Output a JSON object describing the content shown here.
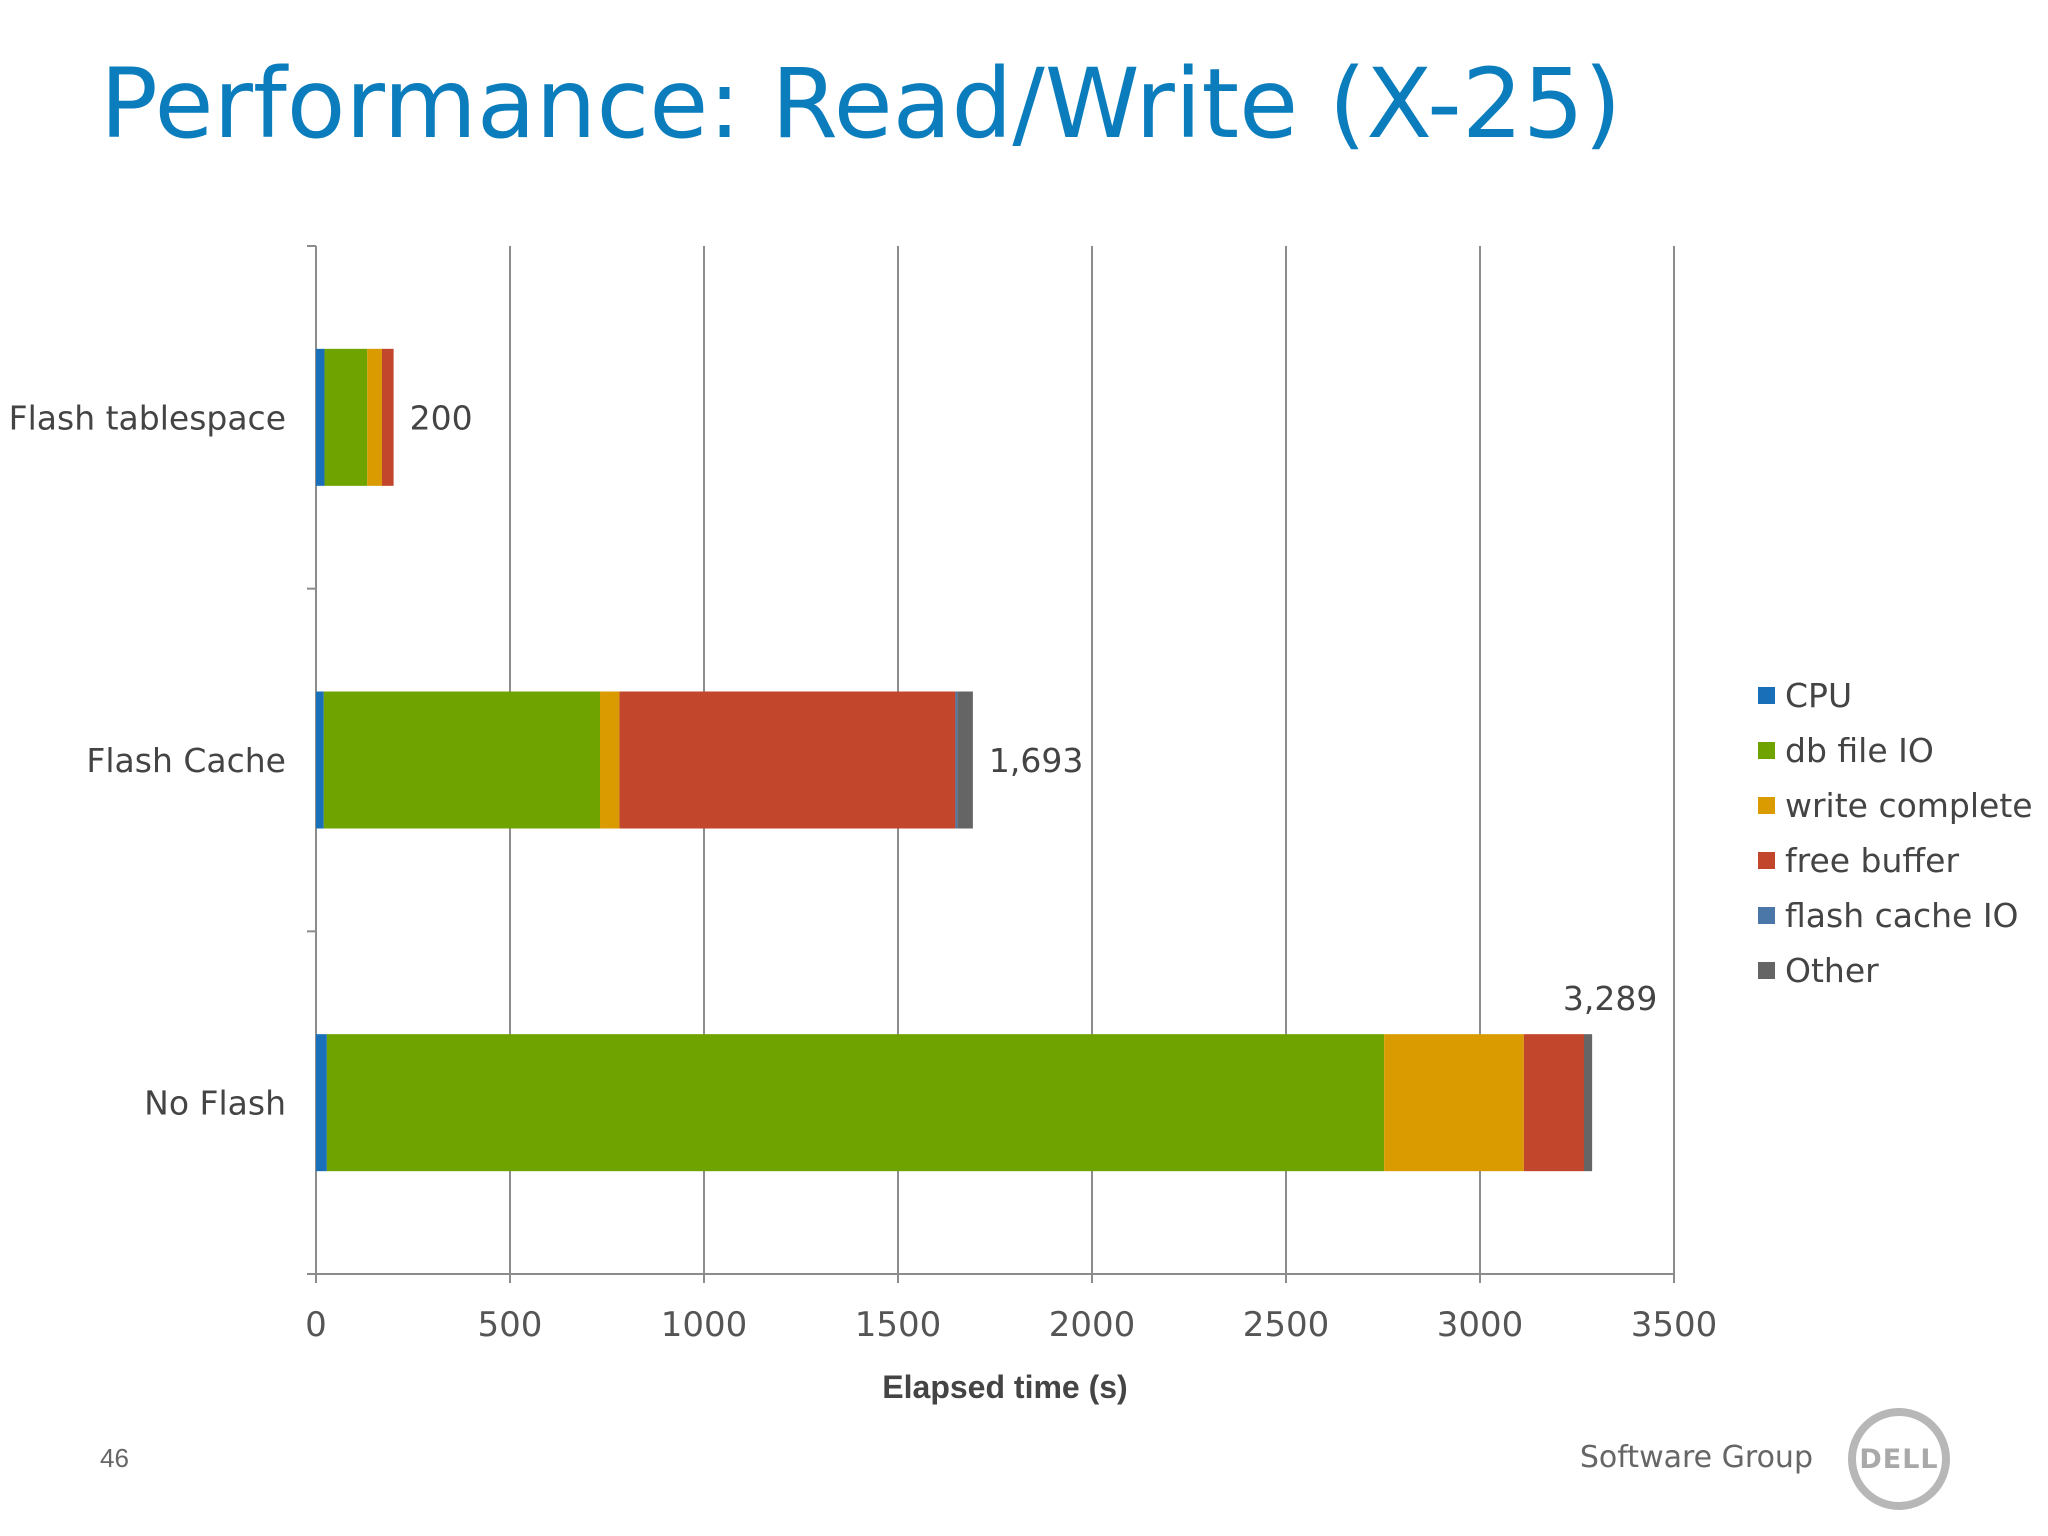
{
  "slide": {
    "title": "Performance: Read/Write (X-25)",
    "page_number": "46",
    "footer_text": "Software Group",
    "logo_text": "DELL"
  },
  "colors": {
    "title": "#0b7dbd",
    "CPU": "#1a70b8",
    "db file IO": "#6fa300",
    "write complete": "#d99b00",
    "free buffer": "#c1462c",
    "flash cache IO": "#4a76a8",
    "Other": "#656565"
  },
  "chart_data": {
    "type": "bar",
    "orientation": "horizontal",
    "stacked": true,
    "categories": [
      "Flash tablespace",
      "Flash Cache",
      "No Flash"
    ],
    "series": [
      {
        "name": "CPU",
        "values": [
          22,
          20,
          28
        ]
      },
      {
        "name": "db file IO",
        "values": [
          110,
          712,
          2725
        ]
      },
      {
        "name": "write complete",
        "values": [
          38,
          50,
          360
        ]
      },
      {
        "name": "free buffer",
        "values": [
          30,
          866,
          155
        ]
      },
      {
        "name": "flash cache IO",
        "values": [
          0,
          5,
          0
        ]
      },
      {
        "name": "Other",
        "values": [
          0,
          40,
          21
        ]
      }
    ],
    "totals": [
      200,
      1693,
      3289
    ],
    "total_labels": [
      "200",
      "1,693",
      "3,289"
    ],
    "xlabel": "Elapsed time (s)",
    "ylabel": "",
    "xlim": [
      0,
      3500
    ],
    "xticks": [
      0,
      500,
      1000,
      1500,
      2000,
      2500,
      3000,
      3500
    ],
    "grid": "vertical",
    "legend_position": "right"
  }
}
